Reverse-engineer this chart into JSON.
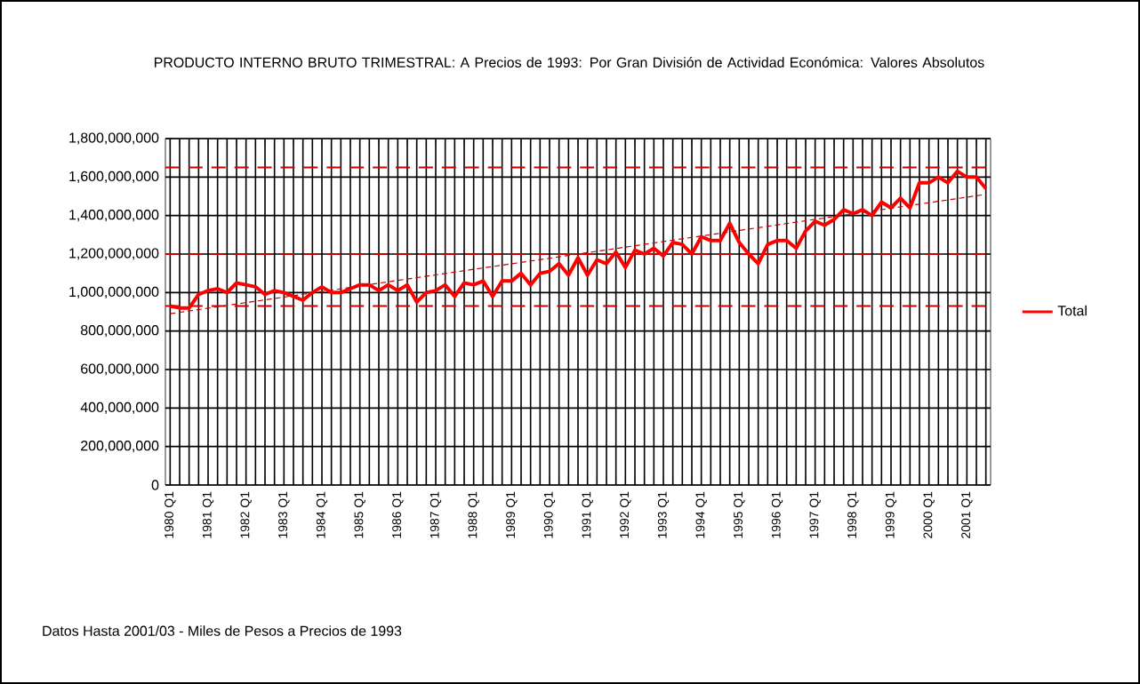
{
  "chart_data": {
    "type": "line",
    "title": "PRODUCTO INTERNO BRUTO TRIMESTRAL: A Precios de 1993: Por Gran División de Actividad Económica: Valores Absolutos",
    "categories": [
      "1980 Q1",
      null,
      null,
      null,
      "1981 Q1",
      null,
      null,
      null,
      "1982 Q1",
      null,
      null,
      null,
      "1983 Q1",
      null,
      null,
      null,
      "1984 Q1",
      null,
      null,
      null,
      "1985 Q1",
      null,
      null,
      null,
      "1986 Q1",
      null,
      null,
      null,
      "1987 Q1",
      null,
      null,
      null,
      "1988 Q1",
      null,
      null,
      null,
      "1989 Q1",
      null,
      null,
      null,
      "1990 Q1",
      null,
      null,
      null,
      "1991 Q1",
      null,
      null,
      null,
      "1992 Q1",
      null,
      null,
      null,
      "1993 Q1",
      null,
      null,
      null,
      "1994 Q1",
      null,
      null,
      null,
      "1995 Q1",
      null,
      null,
      null,
      "1996 Q1",
      null,
      null,
      null,
      "1997 Q1",
      null,
      null,
      null,
      "1998 Q1",
      null,
      null,
      null,
      "1999 Q1",
      null,
      null,
      null,
      "2000 Q1",
      null,
      null,
      null,
      "2001 Q1",
      null,
      null
    ],
    "series": [
      {
        "name": "Total",
        "color": "#ff0000",
        "line_style": "solid",
        "values": [
          930000000,
          920000000,
          920000000,
          990000000,
          1010000000,
          1020000000,
          1000000000,
          1050000000,
          1040000000,
          1030000000,
          990000000,
          1010000000,
          1000000000,
          980000000,
          960000000,
          1000000000,
          1030000000,
          1000000000,
          1000000000,
          1020000000,
          1040000000,
          1040000000,
          1010000000,
          1040000000,
          1010000000,
          1040000000,
          950000000,
          1000000000,
          1010000000,
          1040000000,
          980000000,
          1050000000,
          1040000000,
          1060000000,
          980000000,
          1060000000,
          1060000000,
          1100000000,
          1040000000,
          1100000000,
          1110000000,
          1150000000,
          1090000000,
          1180000000,
          1090000000,
          1170000000,
          1150000000,
          1210000000,
          1130000000,
          1220000000,
          1200000000,
          1230000000,
          1190000000,
          1260000000,
          1250000000,
          1200000000,
          1290000000,
          1270000000,
          1270000000,
          1360000000,
          1260000000,
          1200000000,
          1150000000,
          1250000000,
          1270000000,
          1270000000,
          1230000000,
          1320000000,
          1370000000,
          1350000000,
          1380000000,
          1430000000,
          1410000000,
          1430000000,
          1400000000,
          1470000000,
          1440000000,
          1490000000,
          1440000000,
          1570000000,
          1570000000,
          1600000000,
          1570000000,
          1630000000,
          1600000000,
          1600000000,
          1540000000
        ]
      },
      {
        "type": "line",
        "color": "#cc0000",
        "line_style": "dashed",
        "values": [
          890000000,
          null,
          null,
          null,
          null,
          null,
          null,
          null,
          null,
          null,
          null,
          null,
          null,
          null,
          null,
          null,
          null,
          null,
          null,
          null,
          null,
          null,
          null,
          null,
          null,
          null,
          null,
          null,
          null,
          null,
          null,
          null,
          null,
          null,
          null,
          null,
          null,
          null,
          null,
          null,
          null,
          null,
          null,
          null,
          null,
          null,
          null,
          null,
          null,
          null,
          null,
          null,
          null,
          null,
          null,
          null,
          null,
          null,
          null,
          null,
          null,
          null,
          null,
          null,
          null,
          null,
          null,
          null,
          null,
          null,
          null,
          null,
          null,
          null,
          null,
          null,
          null,
          null,
          null,
          null,
          null,
          null,
          null,
          null,
          null,
          null,
          1510000000
        ]
      }
    ],
    "ylim": [
      0,
      1800000000
    ],
    "yticks": [
      {
        "value": 0,
        "label": "0"
      },
      {
        "value": 200000000,
        "label": "200,000,000"
      },
      {
        "value": 400000000,
        "label": "400,000,000"
      },
      {
        "value": 600000000,
        "label": "600,000,000"
      },
      {
        "value": 800000000,
        "label": "800,000,000"
      },
      {
        "value": 1000000000,
        "label": "1,000,000,000"
      },
      {
        "value": 1200000000,
        "label": "1,200,000,000"
      },
      {
        "value": 1400000000,
        "label": "1,400,000,000"
      },
      {
        "value": 1600000000,
        "label": "1,600,000,000"
      },
      {
        "value": 1800000000,
        "label": "1,800,000,000"
      }
    ],
    "ref_lines": [
      {
        "axis": "y",
        "value": 1650000000,
        "color": "#cc0000",
        "line_style": "dashed"
      },
      {
        "axis": "y",
        "value": 1200000000,
        "color": "#cc0000",
        "line_style": "dashed"
      },
      {
        "axis": "y",
        "value": 930000000,
        "color": "#cc0000",
        "line_style": "dashed"
      }
    ],
    "grid": true,
    "legend": "right",
    "marker": "none",
    "annotations": [
      "Datos Hasta 2001/03 - Miles de Pesos a Precios de 1993"
    ]
  }
}
